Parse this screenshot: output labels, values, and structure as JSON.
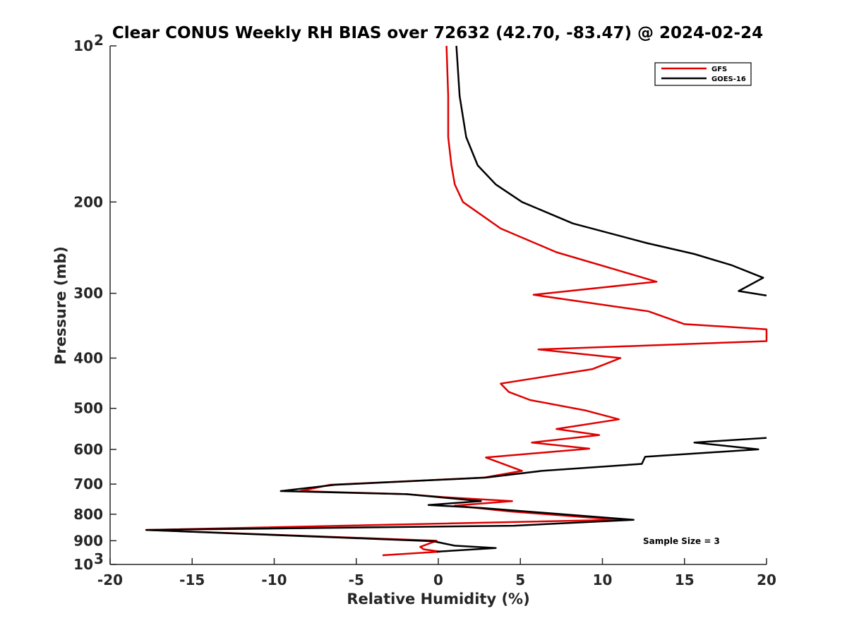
{
  "chart_data": {
    "type": "line",
    "title": "Clear CONUS Weekly RH BIAS over 72632 (42.70, -83.47) @ 2024-02-24",
    "xlabel": "Relative Humidity (%)",
    "ylabel": "Pressure (mb)",
    "xlim": [
      -20,
      20
    ],
    "ylim": [
      100,
      1000
    ],
    "y_scale": "log",
    "y_direction": "reversed",
    "grid": false,
    "legend_position": "top-right",
    "x_ticks": [
      {
        "value": -20,
        "label": "-20"
      },
      {
        "value": -15,
        "label": "-15"
      },
      {
        "value": -10,
        "label": "-10"
      },
      {
        "value": -5,
        "label": "-5"
      },
      {
        "value": 0,
        "label": "0"
      },
      {
        "value": 5,
        "label": "5"
      },
      {
        "value": 10,
        "label": "10"
      },
      {
        "value": 15,
        "label": "15"
      },
      {
        "value": 20,
        "label": "20"
      }
    ],
    "y_ticks": [
      {
        "value": 100,
        "label": "10",
        "sup": "2"
      },
      {
        "value": 200,
        "label": "200",
        "sup": ""
      },
      {
        "value": 300,
        "label": "300",
        "sup": ""
      },
      {
        "value": 400,
        "label": "400",
        "sup": ""
      },
      {
        "value": 500,
        "label": "500",
        "sup": ""
      },
      {
        "value": 600,
        "label": "600",
        "sup": ""
      },
      {
        "value": 700,
        "label": "700",
        "sup": ""
      },
      {
        "value": 800,
        "label": "800",
        "sup": ""
      },
      {
        "value": 900,
        "label": "900",
        "sup": ""
      },
      {
        "value": 1000,
        "label": "10",
        "sup": "3"
      }
    ],
    "series": [
      {
        "name": "GFS",
        "color": "#e00000",
        "points": [
          [
            0.5,
            100
          ],
          [
            0.6,
            125
          ],
          [
            0.6,
            150
          ],
          [
            0.8,
            170
          ],
          [
            1.0,
            185
          ],
          [
            1.5,
            200
          ],
          [
            3.8,
            225
          ],
          [
            7.2,
            250
          ],
          [
            10.8,
            270
          ],
          [
            13.3,
            285
          ],
          [
            5.8,
            302
          ],
          [
            12.8,
            325
          ],
          [
            15.0,
            344
          ],
          [
            20.0,
            352
          ],
          [
            20.0,
            371
          ],
          [
            6.1,
            385
          ],
          [
            11.1,
            400
          ],
          [
            9.4,
            420
          ],
          [
            3.8,
            448
          ],
          [
            4.3,
            465
          ],
          [
            5.6,
            482
          ],
          [
            9.0,
            505
          ],
          [
            11.0,
            525
          ],
          [
            7.2,
            548
          ],
          [
            9.8,
            563
          ],
          [
            5.7,
            582
          ],
          [
            9.2,
            598
          ],
          [
            2.9,
            622
          ],
          [
            5.1,
            660
          ],
          [
            2.8,
            680
          ],
          [
            -6.6,
            702
          ],
          [
            -8.4,
            722
          ],
          [
            -2.0,
            732
          ],
          [
            0.4,
            742
          ],
          [
            4.5,
            755
          ],
          [
            1.0,
            770
          ],
          [
            4.3,
            790
          ],
          [
            11.0,
            820
          ],
          [
            -17.8,
            858
          ],
          [
            -0.1,
            900
          ],
          [
            -1.1,
            925
          ],
          [
            -0.9,
            935
          ],
          [
            0.1,
            945
          ],
          [
            -3.4,
            960
          ]
        ]
      },
      {
        "name": "GOES-16",
        "color": "#000000",
        "points": [
          [
            1.1,
            100
          ],
          [
            1.3,
            125
          ],
          [
            1.7,
            150
          ],
          [
            2.4,
            170
          ],
          [
            3.5,
            185
          ],
          [
            5.1,
            200
          ],
          [
            8.2,
            220
          ],
          [
            12.7,
            240
          ],
          [
            15.6,
            252
          ],
          [
            17.9,
            265
          ],
          [
            19.8,
            280
          ],
          [
            18.3,
            297
          ],
          [
            20.0,
            303
          ],
          [
            null,
            null
          ],
          [
            20.0,
            570
          ],
          [
            15.6,
            582
          ],
          [
            19.5,
            600
          ],
          [
            12.6,
            620
          ],
          [
            12.4,
            640
          ],
          [
            6.3,
            660
          ],
          [
            2.9,
            680
          ],
          [
            -6.3,
            702
          ],
          [
            -9.6,
            722
          ],
          [
            -1.9,
            732
          ],
          [
            2.6,
            755
          ],
          [
            -0.6,
            768
          ],
          [
            2.6,
            778
          ],
          [
            11.9,
            820
          ],
          [
            4.6,
            842
          ],
          [
            -17.8,
            858
          ],
          [
            -0.3,
            902
          ],
          [
            1.0,
            920
          ],
          [
            3.5,
            930
          ],
          [
            -0.1,
            945
          ]
        ]
      }
    ],
    "annotations": [
      "Sample Size = 3"
    ]
  }
}
